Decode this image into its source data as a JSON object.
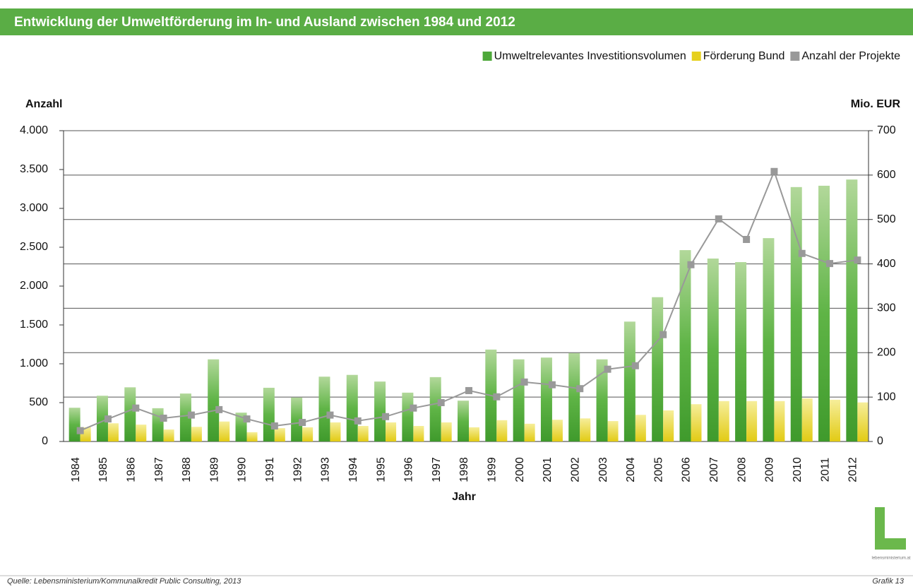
{
  "chart_data": {
    "type": "bar",
    "title": "Entwicklung der Umweltförderung im In- und Ausland zwischen 1984 und 2012",
    "y_axis_label": "Anzahl",
    "y2_axis_label": "Mio. EUR",
    "x_axis_label": "Jahr",
    "source": "Quelle: Lebensministerium/Kommunalkredit Public Consulting, 2013",
    "figure_label": "Grafik 13",
    "logo_text": "lebensministerium.at",
    "categories": [
      "1984",
      "1985",
      "1986",
      "1987",
      "1988",
      "1989",
      "1990",
      "1991",
      "1992",
      "1993",
      "1994",
      "1995",
      "1996",
      "1997",
      "1998",
      "1999",
      "2000",
      "2001",
      "2002",
      "2003",
      "2004",
      "2005",
      "2006",
      "2007",
      "2008",
      "2009",
      "2010",
      "2011",
      "2012"
    ],
    "series": [
      {
        "name": "Umweltrelevantes Investitionsvolumen",
        "color": "#4ea83a",
        "axis": "y2",
        "values": [
          76,
          103,
          122,
          75,
          108,
          185,
          65,
          121,
          99,
          146,
          150,
          135,
          110,
          145,
          92,
          207,
          185,
          189,
          199,
          185,
          270,
          325,
          431,
          412,
          404,
          458,
          573,
          576,
          590
        ]
      },
      {
        "name": "Förderung Bund",
        "color": "#e6d01e",
        "axis": "y2",
        "values": [
          32,
          41,
          38,
          27,
          33,
          45,
          21,
          30,
          32,
          43,
          35,
          43,
          35,
          43,
          32,
          48,
          40,
          49,
          52,
          46,
          60,
          70,
          84,
          91,
          91,
          91,
          97,
          94,
          88
        ]
      },
      {
        "name": "Anzahl der Projekte",
        "color": "#999999",
        "type": "line",
        "axis": "y",
        "values": [
          140,
          290,
          430,
          300,
          340,
          410,
          290,
          200,
          245,
          340,
          265,
          320,
          430,
          500,
          655,
          575,
          765,
          730,
          680,
          930,
          975,
          1375,
          2275,
          2865,
          2600,
          3475,
          2420,
          2290,
          2335
        ]
      }
    ],
    "ylim": [
      0,
      4000
    ],
    "yticks": [
      0,
      500,
      {
        "value": 1000,
        "label": "1.000"
      },
      {
        "value": 1500,
        "label": "1.500"
      },
      {
        "value": 2000,
        "label": "2.000"
      },
      {
        "value": 2500,
        "label": "2.500"
      },
      {
        "value": 3000,
        "label": "3.000"
      },
      {
        "value": 3500,
        "label": "3.500"
      },
      {
        "value": 4000,
        "label": "4.000"
      }
    ],
    "y2lim": [
      0,
      700
    ],
    "y2ticks": [
      0,
      100,
      200,
      300,
      400,
      500,
      600,
      700
    ],
    "grid": true
  }
}
